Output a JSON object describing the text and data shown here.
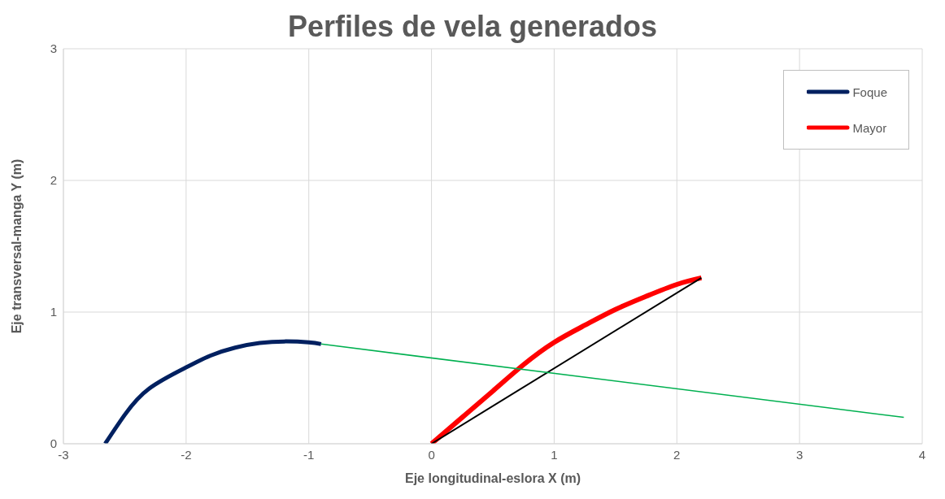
{
  "chart_data": {
    "type": "line",
    "title": "Perfiles de vela generados",
    "xlabel": "Eje longitudinal-eslora X (m)",
    "ylabel": "Eje transversal-manga Y (m)",
    "xlim": [
      -3,
      4
    ],
    "xticks": [
      -3,
      -2,
      -1,
      0,
      1,
      2,
      3,
      4
    ],
    "ylim": [
      0,
      3
    ],
    "yticks": [
      0,
      1,
      2,
      3
    ],
    "grid": true,
    "legend": "top right",
    "marker": "none",
    "line_style": "solid",
    "series": [
      {
        "name": "Foque",
        "color": "#002060",
        "x": [
          -2.66,
          -2.5,
          -2.3,
          -2.0,
          -1.8,
          -1.6,
          -1.4,
          -1.2,
          -1.0,
          -0.9
        ],
        "values": [
          0,
          0.22,
          0.42,
          0.58,
          0.67,
          0.73,
          0.765,
          0.777,
          0.77,
          0.757
        ]
      },
      {
        "name": "Mayor",
        "color": "#ff0000",
        "x": [
          0,
          0.25,
          0.5,
          0.75,
          1.0,
          1.25,
          1.5,
          1.75,
          2.0,
          2.2
        ],
        "values": [
          0,
          0.2,
          0.4,
          0.6,
          0.77,
          0.9,
          1.02,
          1.12,
          1.21,
          1.26
        ]
      },
      {
        "color": "#000000",
        "x": [
          0,
          2.2
        ],
        "values": [
          0,
          1.26
        ]
      },
      {
        "color": "#00b050",
        "x": [
          -0.9,
          3.85
        ],
        "values": [
          0.757,
          0.2
        ]
      }
    ]
  }
}
